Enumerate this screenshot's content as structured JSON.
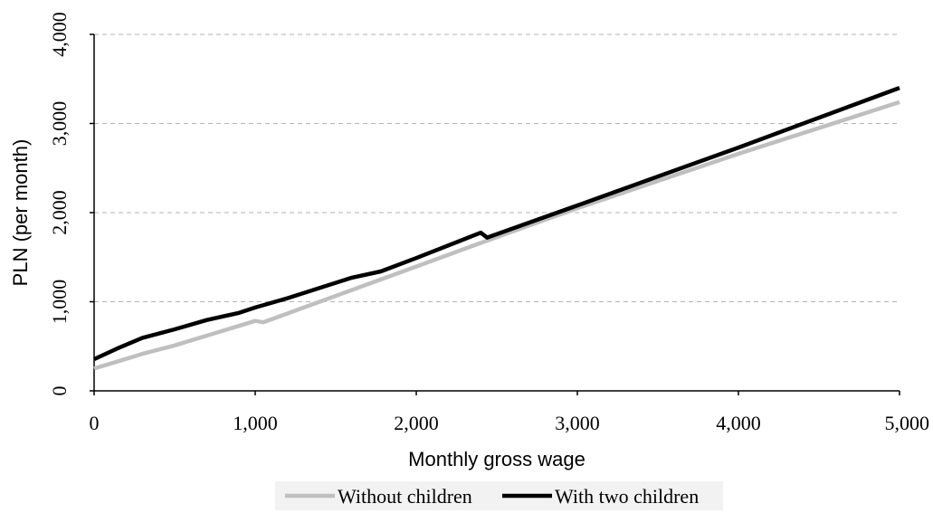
{
  "chart_data": {
    "type": "line",
    "xlabel": "Monthly gross wage",
    "ylabel": "PLN (per month)",
    "xlim": [
      0,
      5000
    ],
    "ylim": [
      0,
      4000
    ],
    "xticks": [
      0,
      1000,
      2000,
      3000,
      4000,
      5000
    ],
    "yticks": [
      0,
      1000,
      2000,
      3000,
      4000
    ],
    "xtick_labels": [
      "0",
      "1,000",
      "2,000",
      "3,000",
      "4,000",
      "5,000"
    ],
    "ytick_labels": [
      "0",
      "1,000",
      "2,000",
      "3,000",
      "4,000"
    ],
    "grid": "horizontal dashed",
    "legend_position": "bottom",
    "series": [
      {
        "name": "Without children",
        "color": "#bfbfbf",
        "points": [
          [
            0,
            250
          ],
          [
            300,
            415
          ],
          [
            500,
            510
          ],
          [
            1000,
            785
          ],
          [
            1050,
            770
          ],
          [
            2000,
            1395
          ],
          [
            2400,
            1660
          ],
          [
            3000,
            2050
          ],
          [
            4000,
            2660
          ],
          [
            5000,
            3240
          ]
        ]
      },
      {
        "name": "With two children",
        "color": "#000000",
        "points": [
          [
            0,
            355
          ],
          [
            150,
            480
          ],
          [
            300,
            595
          ],
          [
            500,
            690
          ],
          [
            700,
            795
          ],
          [
            900,
            875
          ],
          [
            1000,
            935
          ],
          [
            1200,
            1040
          ],
          [
            1600,
            1270
          ],
          [
            1780,
            1340
          ],
          [
            2000,
            1490
          ],
          [
            2400,
            1775
          ],
          [
            2440,
            1720
          ],
          [
            3000,
            2080
          ],
          [
            4000,
            2730
          ],
          [
            5000,
            3400
          ]
        ]
      }
    ]
  }
}
